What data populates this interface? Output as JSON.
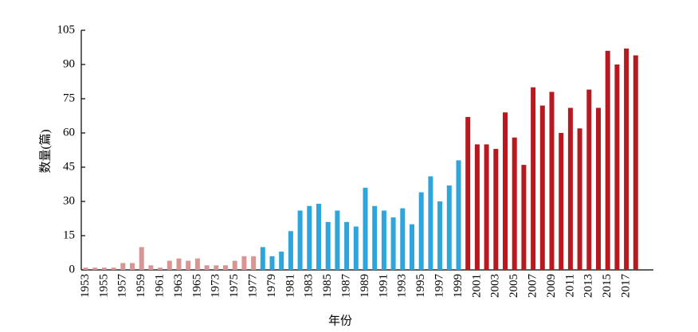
{
  "chart_data": {
    "type": "bar",
    "x_label": "年份",
    "y_label": "数量(篇)",
    "categories": [
      "1953",
      null,
      "1955",
      null,
      "1957",
      null,
      "1959",
      null,
      "1961",
      null,
      "1963",
      null,
      "1965",
      null,
      "1973",
      null,
      "1975",
      null,
      "1977",
      null,
      "1979",
      null,
      "1981",
      null,
      "1983",
      null,
      "1985",
      null,
      "1987",
      null,
      "1989",
      null,
      "1991",
      null,
      "1993",
      null,
      "1995",
      null,
      "1997",
      null,
      "1999",
      null,
      "2001",
      null,
      "2003",
      null,
      "2005",
      null,
      "2007",
      null,
      "2009",
      null,
      "2011",
      null,
      "2013",
      null,
      "2015",
      null,
      "2017",
      null
    ],
    "values": [
      1,
      1,
      1,
      1,
      3,
      3,
      10,
      2,
      1,
      4,
      5,
      4,
      5,
      2,
      2,
      2,
      4,
      6,
      6,
      10,
      6,
      8,
      17,
      26,
      28,
      29,
      21,
      26,
      21,
      19,
      36,
      28,
      26,
      23,
      27,
      20,
      34,
      41,
      30,
      37,
      48,
      67,
      55,
      55,
      53,
      69,
      58,
      46,
      80,
      72,
      78,
      60,
      71,
      62,
      79,
      71,
      96,
      90,
      97,
      94
    ],
    "colors": [
      "#d99594",
      "#d99594",
      "#d99594",
      "#d99594",
      "#d99594",
      "#d99594",
      "#d99594",
      "#d99594",
      "#d99594",
      "#d99594",
      "#d99594",
      "#d99594",
      "#d99594",
      "#d99594",
      "#d99594",
      "#d99594",
      "#d99594",
      "#d99594",
      "#d99594",
      "#2ea6dc",
      "#2ea6dc",
      "#2ea6dc",
      "#2ea6dc",
      "#2ea6dc",
      "#2ea6dc",
      "#2ea6dc",
      "#2ea6dc",
      "#2ea6dc",
      "#2ea6dc",
      "#2ea6dc",
      "#2ea6dc",
      "#2ea6dc",
      "#2ea6dc",
      "#2ea6dc",
      "#2ea6dc",
      "#2ea6dc",
      "#2ea6dc",
      "#2ea6dc",
      "#2ea6dc",
      "#2ea6dc",
      "#2ea6dc",
      "#b8191e",
      "#b8191e",
      "#b8191e",
      "#b8191e",
      "#b8191e",
      "#b8191e",
      "#b8191e",
      "#b8191e",
      "#b8191e",
      "#b8191e",
      "#b8191e",
      "#b8191e",
      "#b8191e",
      "#b8191e",
      "#b8191e",
      "#b8191e",
      "#b8191e",
      "#b8191e",
      "#b8191e"
    ],
    "ylim": [
      0,
      105
    ],
    "yticks": [
      0,
      15,
      30,
      45,
      60,
      75,
      90,
      105
    ]
  }
}
